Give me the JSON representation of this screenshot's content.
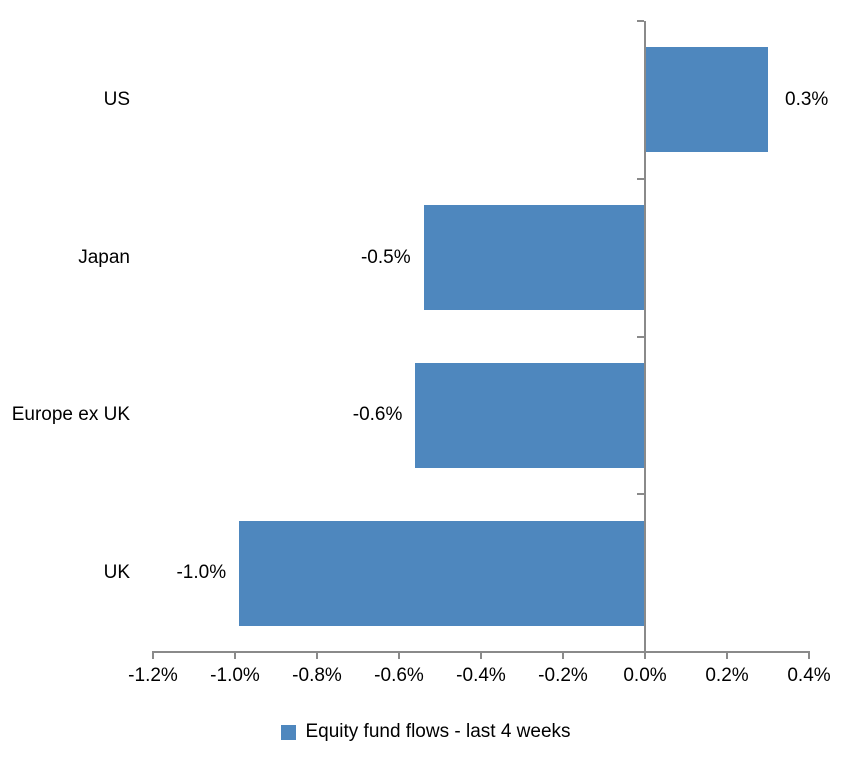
{
  "chart_data": {
    "type": "bar",
    "orientation": "horizontal",
    "title": "",
    "categories": [
      "US",
      "Japan",
      "Europe ex UK",
      "UK"
    ],
    "values": [
      0.3,
      -0.54,
      -0.56,
      -0.99
    ],
    "data_labels": [
      "0.3%",
      "-0.5%",
      "-0.6%",
      "-1.0%"
    ],
    "series_name": "Equity fund flows - last 4 weeks",
    "x_axis": {
      "min": -1.2,
      "max": 0.4,
      "tick_step": 0.2,
      "tick_labels": [
        "-1.2%",
        "-1.0%",
        "-0.8%",
        "-0.6%",
        "-0.4%",
        "-0.2%",
        "0.0%",
        "0.2%",
        "0.4%"
      ]
    },
    "grid": false,
    "legend_position": "bottom",
    "colors": {
      "bar": "#4E87BE",
      "axis": "#8A8A8A",
      "text": "#000000",
      "background": "#FFFFFF"
    }
  }
}
